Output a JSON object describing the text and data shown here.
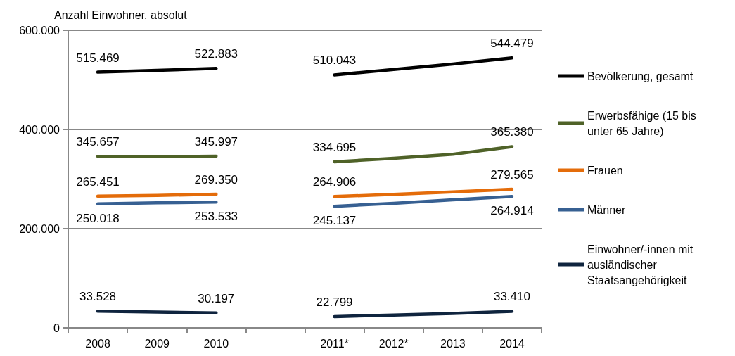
{
  "chart_data": {
    "type": "line",
    "ylabel": "Anzahl Einwohner, absolut",
    "categories": [
      "2008",
      "2009",
      "2010",
      null,
      "2011*",
      "2012*",
      "2013",
      "2014"
    ],
    "series": [
      {
        "name": "Bevölkerung, gesamt",
        "color": "#000000",
        "values": [
          515469,
          519000,
          522883,
          null,
          510043,
          521000,
          532000,
          544479
        ],
        "value_labels": [
          "515.469",
          null,
          "522.883",
          null,
          "510.043",
          null,
          null,
          "544.479"
        ]
      },
      {
        "name": "Erwerbsfähige (15 bis unter 65 Jahre)",
        "color": "#4f6228",
        "values": [
          345657,
          345000,
          345997,
          null,
          334695,
          342000,
          350000,
          365380
        ],
        "value_labels": [
          "345.657",
          null,
          "345.997",
          null,
          "334.695",
          null,
          null,
          "365.380"
        ]
      },
      {
        "name": "Frauen",
        "color": "#e46c0a",
        "values": [
          265451,
          267000,
          269350,
          null,
          264906,
          269000,
          274000,
          279565
        ],
        "value_labels": [
          "265.451",
          null,
          "269.350",
          null,
          "264.906",
          null,
          null,
          "279.565"
        ]
      },
      {
        "name": "Männer",
        "color": "#376092",
        "values": [
          250018,
          252000,
          253533,
          null,
          245137,
          251000,
          258000,
          264914
        ],
        "value_labels": [
          "250.018",
          null,
          "253.533",
          null,
          "245.137",
          null,
          null,
          "264.914"
        ]
      },
      {
        "name": "Einwohner/-innen mit ausländischer Staatsangehörigkeit",
        "color": "#0f243e",
        "values": [
          33528,
          32000,
          30197,
          null,
          22799,
          26000,
          29000,
          33410
        ],
        "value_labels": [
          "33.528",
          null,
          "30.197",
          null,
          "22.799",
          null,
          null,
          "33.410"
        ]
      }
    ],
    "ylim": [
      0,
      600000
    ],
    "yticks": [
      {
        "value": 0,
        "label": "0"
      },
      {
        "value": 200000,
        "label": "200.000"
      },
      {
        "value": 400000,
        "label": "400.000"
      },
      {
        "value": 600000,
        "label": "600.000"
      }
    ],
    "grid": "y",
    "legend": "right",
    "marker": "none",
    "line_style": "solid"
  }
}
